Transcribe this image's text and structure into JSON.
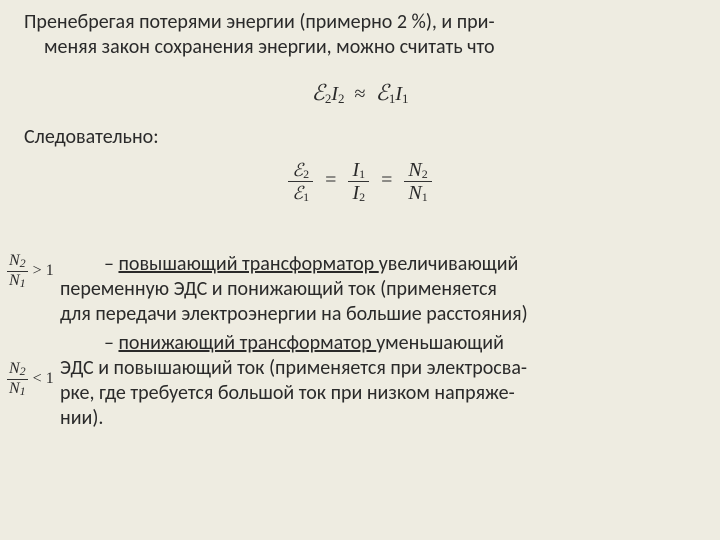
{
  "colors": {
    "background": "#eeece1",
    "text": "#2a2a2a",
    "rule": "#333333"
  },
  "typography": {
    "body_font": "Calibri",
    "math_font": "Times New Roman",
    "script_font": "Brush Script MT",
    "body_size_pt": 20,
    "math_size_pt": 20,
    "side_math_size_pt": 16
  },
  "para1_line1": "Пренебрегая потерями энергии (примерно 2 %), и при-",
  "para1_line2": "меняя закон сохранения энергии, можно считать что",
  "eq1": {
    "lhs_symbol": "ℰ",
    "lhs_sub": "2",
    "lhs_I": "I",
    "lhs_Isub": "2",
    "approx": "≈",
    "rhs_symbol": "ℰ",
    "rhs_sub": "1",
    "rhs_I": "I",
    "rhs_Isub": "1"
  },
  "para2": "Следовательно:",
  "eq2": {
    "f1": {
      "num_sym": "ℰ",
      "num_sub": "2",
      "den_sym": "ℰ",
      "den_sub": "1"
    },
    "f2": {
      "num_sym": "I",
      "num_sub": "1",
      "den_sym": "I",
      "den_sub": "2"
    },
    "f3": {
      "num_sym": "N",
      "num_sub": "2",
      "den_sym": "N",
      "den_sub": "1"
    },
    "eq": "="
  },
  "side1": {
    "num_sym": "N",
    "num_sub": "2",
    "den_sym": "N",
    "den_sub": "1",
    "cmp": "> 1"
  },
  "side2": {
    "num_sym": "N",
    "num_sub": "2",
    "den_sym": "N",
    "den_sub": "1",
    "cmp": "< 1"
  },
  "block1": {
    "dash": "– ",
    "term": "повышающий трансформатор ",
    "l1_tail": " увеличивающий",
    "l2": "переменную ЭДС и понижающий ток (применяется",
    "l3": "для передачи электроэнергии на большие расстояния)"
  },
  "block2": {
    "dash": "– ",
    "term": "понижающий трансформатор ",
    "l1_tail": " уменьшающий",
    "l2": "ЭДС и повышающий ток (применяется при электросва-",
    "l3": "рке, где требуется большой ток при низком напряже-",
    "l4": "нии)."
  }
}
